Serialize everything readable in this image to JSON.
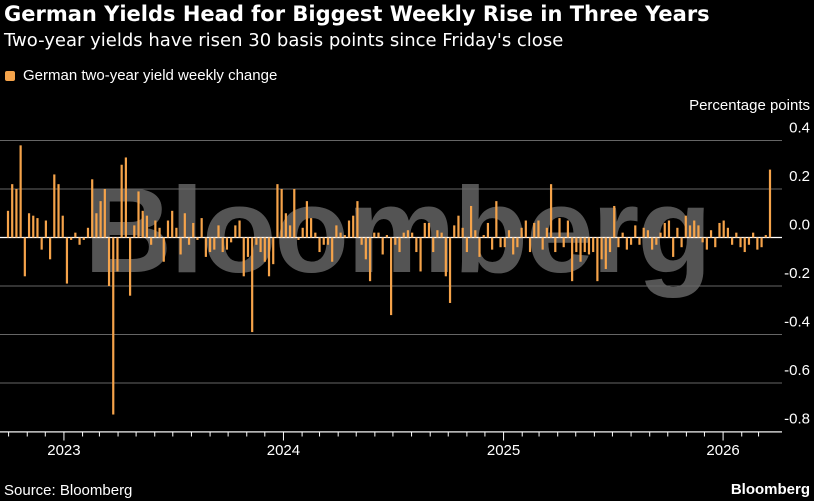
{
  "header": {
    "title": "German Yields Head for Biggest Weekly Rise in Three Years",
    "subtitle": "Two-year yields have risen 30 basis points since Friday's close"
  },
  "footer": {
    "source": "Source: Bloomberg",
    "brand": "Bloomberg"
  },
  "watermark": "Bloomberg",
  "colors": {
    "bar": "#f5a34a",
    "background": "#000000",
    "grid": "#666666",
    "text": "#ffffff"
  },
  "chart_data": {
    "type": "bar",
    "title": "German Yields Head for Biggest Weekly Rise in Three Years",
    "subtitle": "Two-year yields have risen 30 basis points since Friday's close",
    "ylabel": "Percentage points",
    "ylim": [
      -0.8,
      0.4
    ],
    "yticks": [
      0.4,
      0.2,
      0.0,
      -0.2,
      -0.4,
      -0.6,
      -0.8
    ],
    "ytick_labels": [
      "0.4",
      "0.2",
      "0.0",
      "-0.2",
      "-0.4",
      "-0.6",
      "-0.8"
    ],
    "x_start": "2022-09-30",
    "x_end": "2026-03-20",
    "xticks": [
      {
        "date": "2023-01-01",
        "label": "2023"
      },
      {
        "date": "2024-01-01",
        "label": "2024"
      },
      {
        "date": "2025-01-01",
        "label": "2025"
      },
      {
        "date": "2026-01-01",
        "label": "2026"
      }
    ],
    "grid": true,
    "legend_position": "top-left",
    "series": [
      {
        "name": "German two-year yield weekly change",
        "x": [
          "2022-09-30",
          "2022-10-07",
          "2022-10-14",
          "2022-10-21",
          "2022-10-28",
          "2022-11-04",
          "2022-11-11",
          "2022-11-18",
          "2022-11-25",
          "2022-12-02",
          "2022-12-09",
          "2022-12-16",
          "2022-12-23",
          "2022-12-30",
          "2023-01-06",
          "2023-01-13",
          "2023-01-20",
          "2023-01-27",
          "2023-02-03",
          "2023-02-10",
          "2023-02-17",
          "2023-02-24",
          "2023-03-03",
          "2023-03-10",
          "2023-03-17",
          "2023-03-24",
          "2023-03-31",
          "2023-04-07",
          "2023-04-14",
          "2023-04-21",
          "2023-04-28",
          "2023-05-05",
          "2023-05-12",
          "2023-05-19",
          "2023-05-26",
          "2023-06-02",
          "2023-06-09",
          "2023-06-16",
          "2023-06-23",
          "2023-06-30",
          "2023-07-07",
          "2023-07-14",
          "2023-07-21",
          "2023-07-28",
          "2023-08-04",
          "2023-08-11",
          "2023-08-18",
          "2023-08-25",
          "2023-09-01",
          "2023-09-08",
          "2023-09-15",
          "2023-09-22",
          "2023-09-29",
          "2023-10-06",
          "2023-10-13",
          "2023-10-20",
          "2023-10-27",
          "2023-11-03",
          "2023-11-10",
          "2023-11-17",
          "2023-11-24",
          "2023-12-01",
          "2023-12-08",
          "2023-12-15",
          "2023-12-22",
          "2023-12-29",
          "2024-01-05",
          "2024-01-12",
          "2024-01-19",
          "2024-01-26",
          "2024-02-02",
          "2024-02-09",
          "2024-02-16",
          "2024-02-23",
          "2024-03-01",
          "2024-03-08",
          "2024-03-15",
          "2024-03-22",
          "2024-03-29",
          "2024-04-05",
          "2024-04-12",
          "2024-04-19",
          "2024-04-26",
          "2024-05-03",
          "2024-05-10",
          "2024-05-17",
          "2024-05-24",
          "2024-05-31",
          "2024-06-07",
          "2024-06-14",
          "2024-06-21",
          "2024-06-28",
          "2024-07-05",
          "2024-07-12",
          "2024-07-19",
          "2024-07-26",
          "2024-08-02",
          "2024-08-09",
          "2024-08-16",
          "2024-08-23",
          "2024-08-30",
          "2024-09-06",
          "2024-09-13",
          "2024-09-20",
          "2024-09-27",
          "2024-10-04",
          "2024-10-11",
          "2024-10-18",
          "2024-10-25",
          "2024-11-01",
          "2024-11-08",
          "2024-11-15",
          "2024-11-22",
          "2024-11-29",
          "2024-12-06",
          "2024-12-13",
          "2024-12-20",
          "2024-12-27",
          "2025-01-03",
          "2025-01-10",
          "2025-01-17",
          "2025-01-24",
          "2025-01-31",
          "2025-02-07",
          "2025-02-14",
          "2025-02-21",
          "2025-02-28",
          "2025-03-07",
          "2025-03-14",
          "2025-03-21",
          "2025-03-28",
          "2025-04-04",
          "2025-04-11",
          "2025-04-18",
          "2025-04-25",
          "2025-05-02",
          "2025-05-09",
          "2025-05-16",
          "2025-05-23",
          "2025-05-30",
          "2025-06-06",
          "2025-06-13",
          "2025-06-20",
          "2025-06-27",
          "2025-07-04",
          "2025-07-11",
          "2025-07-18",
          "2025-07-25",
          "2025-08-01",
          "2025-08-08",
          "2025-08-15",
          "2025-08-22",
          "2025-08-29",
          "2025-09-05",
          "2025-09-12",
          "2025-09-19",
          "2025-09-26",
          "2025-10-03",
          "2025-10-10",
          "2025-10-17",
          "2025-10-24",
          "2025-10-31",
          "2025-11-07",
          "2025-11-14",
          "2025-11-21",
          "2025-11-28",
          "2025-12-05",
          "2025-12-12",
          "2025-12-19",
          "2025-12-26",
          "2026-01-02",
          "2026-01-09",
          "2026-01-16",
          "2026-01-23",
          "2026-01-30",
          "2026-02-06",
          "2026-02-13",
          "2026-02-20",
          "2026-02-27",
          "2026-03-06",
          "2026-03-13",
          "2026-03-20"
        ],
        "values": [
          0.11,
          0.22,
          0.2,
          0.38,
          -0.16,
          0.1,
          0.09,
          0.08,
          -0.05,
          0.07,
          -0.09,
          0.26,
          0.22,
          0.09,
          -0.19,
          -0.01,
          0.02,
          -0.03,
          -0.01,
          0.04,
          0.24,
          0.1,
          0.15,
          0.2,
          -0.2,
          -0.73,
          -0.14,
          0.3,
          0.33,
          -0.24,
          0.05,
          0.19,
          0.11,
          0.09,
          -0.03,
          0.07,
          0.04,
          -0.1,
          0.07,
          0.11,
          0.04,
          -0.07,
          0.1,
          -0.03,
          0.06,
          -0.01,
          0.08,
          -0.08,
          -0.06,
          -0.05,
          0.05,
          -0.06,
          -0.05,
          -0.02,
          0.05,
          0.07,
          -0.16,
          -0.08,
          -0.39,
          -0.03,
          -0.06,
          -0.1,
          -0.16,
          -0.11,
          0.22,
          0.2,
          0.1,
          0.05,
          0.2,
          -0.01,
          0.04,
          0.15,
          0.08,
          0.02,
          -0.06,
          -0.03,
          -0.03,
          -0.1,
          0.05,
          0.02,
          0.01,
          0.07,
          0.09,
          0.15,
          -0.03,
          -0.09,
          -0.18,
          0.02,
          0.02,
          -0.07,
          0.01,
          -0.32,
          -0.03,
          -0.06,
          0.02,
          0.03,
          0.02,
          -0.06,
          -0.14,
          0.06,
          0.06,
          -0.06,
          0.03,
          0.02,
          -0.16,
          -0.27,
          0.05,
          0.09,
          0.04,
          -0.06,
          0.13,
          0.03,
          -0.08,
          0.01,
          0.06,
          -0.05,
          0.15,
          -0.04,
          -0.04,
          0.03,
          -0.07,
          -0.04,
          0.04,
          0.07,
          -0.06,
          0.06,
          0.07,
          -0.05,
          0.04,
          0.22,
          -0.06,
          0.08,
          -0.04,
          0.07,
          -0.18,
          -0.06,
          -0.1,
          -0.06,
          -0.07,
          -0.06,
          -0.18,
          -0.09,
          -0.13,
          -0.06,
          0.13,
          -0.04,
          0.02,
          -0.05,
          -0.03,
          0.05,
          -0.03,
          0.04,
          0.03,
          -0.05,
          -0.03,
          0.02,
          0.06,
          0.07,
          -0.08,
          0.04,
          -0.04,
          0.09,
          0.05,
          0.07,
          0.05,
          -0.02,
          -0.05,
          0.03,
          -0.04,
          0.06,
          0.07,
          0.04,
          -0.03,
          0.02,
          -0.04,
          -0.06,
          -0.03,
          0.02,
          -0.05,
          -0.04,
          0.01,
          0.28
        ]
      }
    ]
  }
}
